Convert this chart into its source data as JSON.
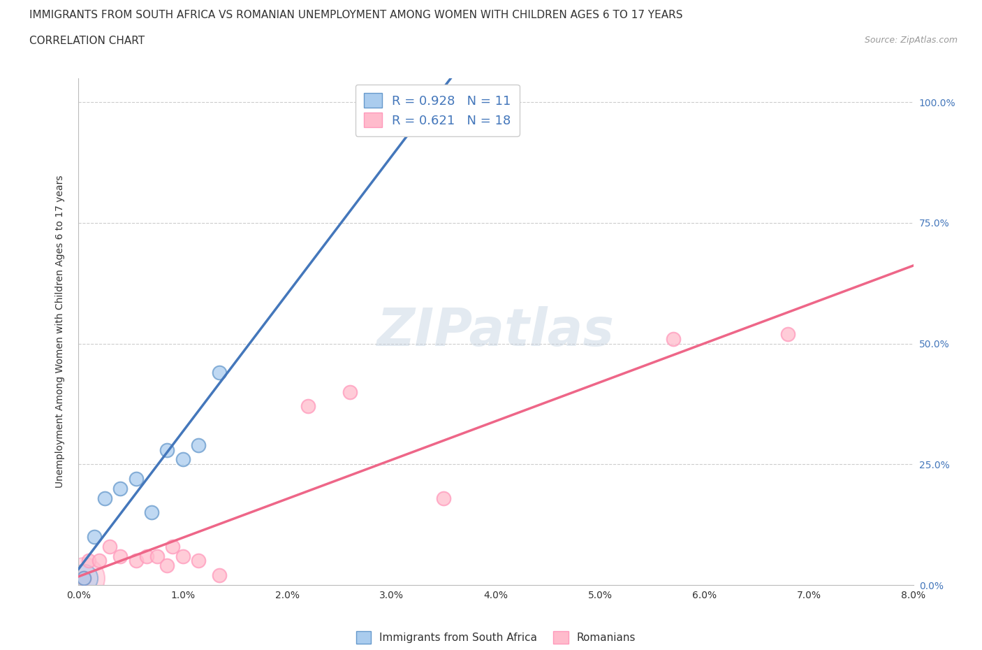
{
  "title": "IMMIGRANTS FROM SOUTH AFRICA VS ROMANIAN UNEMPLOYMENT AMONG WOMEN WITH CHILDREN AGES 6 TO 17 YEARS",
  "subtitle": "CORRELATION CHART",
  "source": "Source: ZipAtlas.com",
  "ylabel_label": "Unemployment Among Women with Children Ages 6 to 17 years",
  "xlim": [
    0.0,
    8.0
  ],
  "ylim": [
    0.0,
    105.0
  ],
  "blue_scatter_x": [
    0.05,
    0.15,
    0.25,
    0.4,
    0.55,
    0.7,
    0.85,
    1.0,
    1.15,
    1.35,
    3.1
  ],
  "blue_scatter_y": [
    1.5,
    10.0,
    18.0,
    20.0,
    22.0,
    15.0,
    28.0,
    26.0,
    29.0,
    44.0,
    95.0
  ],
  "pink_scatter_x": [
    0.05,
    0.1,
    0.2,
    0.3,
    0.4,
    0.55,
    0.65,
    0.75,
    0.85,
    0.9,
    1.0,
    1.15,
    1.35,
    2.2,
    2.6,
    3.5,
    5.7,
    6.8
  ],
  "pink_scatter_y": [
    1.5,
    5.0,
    5.0,
    8.0,
    6.0,
    5.0,
    6.0,
    6.0,
    4.0,
    8.0,
    6.0,
    5.0,
    2.0,
    37.0,
    40.0,
    18.0,
    51.0,
    52.0
  ],
  "blue_R": 0.928,
  "blue_N": 11,
  "pink_R": 0.621,
  "pink_N": 18,
  "blue_scatter_color": "#aaccee",
  "blue_scatter_edge": "#6699cc",
  "pink_scatter_color": "#ffbbcc",
  "pink_scatter_edge": "#ff99bb",
  "blue_line_color": "#4477bb",
  "pink_line_color": "#ee6688",
  "large_dot_size": 1800,
  "scatter_size": 200,
  "watermark": "ZIPatlas",
  "background_color": "#ffffff",
  "grid_color": "#cccccc",
  "ytick_color": "#4477bb",
  "xtick_color": "#333333",
  "ylabel_color": "#333333",
  "legend_R_color": "#4477bb",
  "legend_N_color": "#333333"
}
